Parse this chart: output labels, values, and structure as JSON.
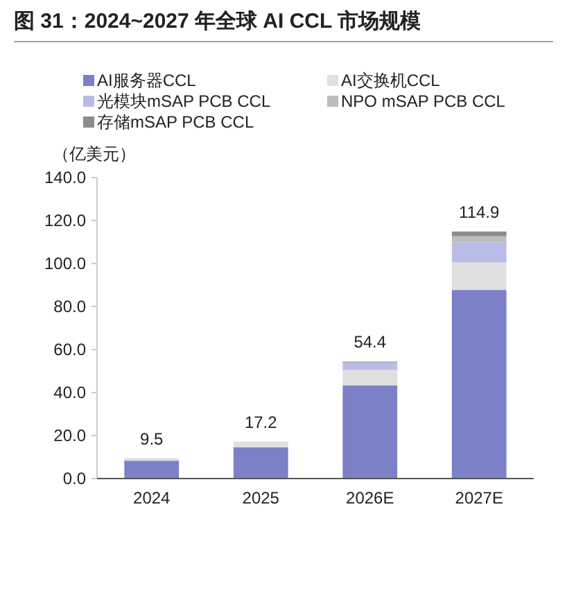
{
  "chart_data": {
    "type": "bar",
    "title": "图 31：2024~2027 年全球 AI CCL 市场规模",
    "ylabel": "（亿美元）",
    "categories": [
      "2024",
      "2025",
      "2026E",
      "2027E"
    ],
    "stacked": true,
    "series": [
      {
        "name": "AI服务器CCL",
        "color": "#7b80c8",
        "values": [
          8.3,
          14.5,
          43.4,
          87.7
        ]
      },
      {
        "name": "AI交换机CCL",
        "color": "#e0e0e0",
        "values": [
          1.2,
          2.7,
          7.1,
          12.8
        ]
      },
      {
        "name": "光模块mSAP PCB CCL",
        "color": "#b8bce6",
        "values": [
          0,
          0,
          3.6,
          9.4
        ]
      },
      {
        "name": "NPO mSAP PCB CCL",
        "color": "#bdbdbd",
        "values": [
          0,
          0,
          0,
          2.8
        ]
      },
      {
        "name": "存储mSAP PCB CCL",
        "color": "#8c8c8c",
        "values": [
          0,
          0,
          0.3,
          2.2
        ]
      }
    ],
    "totals": [
      "9.5",
      "17.2",
      "54.4",
      "114.9"
    ],
    "ylim": [
      0,
      140
    ],
    "yticks": [
      {
        "value": 0,
        "label": "0.0"
      },
      {
        "value": 20,
        "label": "20.0"
      },
      {
        "value": 40,
        "label": "40.0"
      },
      {
        "value": 60,
        "label": "60.0"
      },
      {
        "value": 80,
        "label": "80.0"
      },
      {
        "value": 100,
        "label": "100.0"
      },
      {
        "value": 120,
        "label": "120.0"
      },
      {
        "value": 140,
        "label": "140.0"
      }
    ],
    "legend": "top"
  }
}
